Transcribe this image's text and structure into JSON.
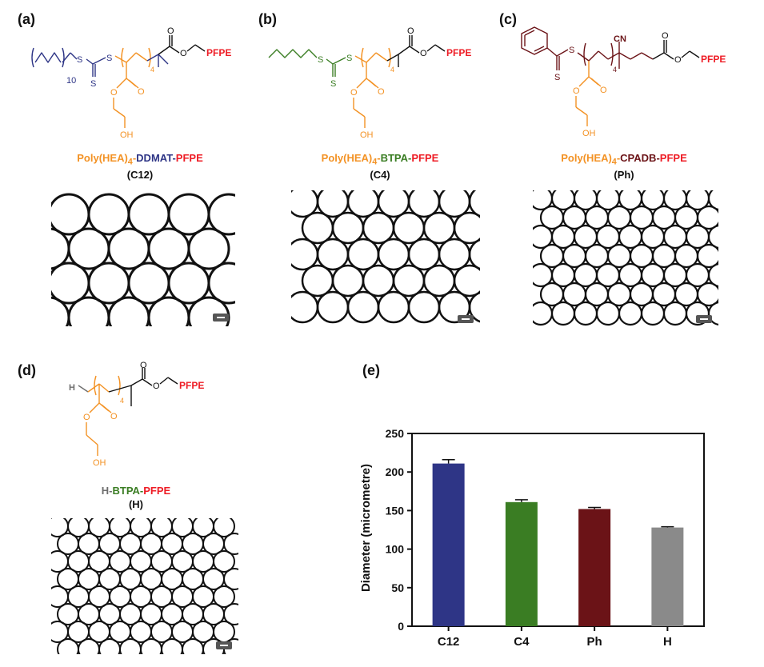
{
  "panels": {
    "a": {
      "letter": "(a)",
      "caption_parts": [
        "Poly(HEA)",
        "4",
        "-",
        "DDMAT",
        "-",
        "PFPE"
      ],
      "code": "(C12)",
      "struct": {
        "rep_outer": "10",
        "rep_inner": "4",
        "S1": "S",
        "S2": "S",
        "S3": "S",
        "O1": "O",
        "O2": "O",
        "O3": "O",
        "O4": "O",
        "OH": "OH",
        "PFPE": "PFPE"
      }
    },
    "b": {
      "letter": "(b)",
      "caption_parts": [
        "Poly(HEA)",
        "4",
        "-",
        "BTPA",
        "-",
        "PFPE"
      ],
      "code": "(C4)",
      "struct": {
        "rep_inner": "4",
        "S1": "S",
        "S2": "S",
        "S3": "S",
        "O1": "O",
        "O2": "O",
        "O3": "O",
        "O4": "O",
        "OH": "OH",
        "PFPE": "PFPE"
      }
    },
    "c": {
      "letter": "(c)",
      "caption_parts": [
        "Poly(HEA)",
        "4",
        "-",
        "CPADB",
        "-",
        "PFPE"
      ],
      "code": "(Ph)",
      "struct": {
        "rep_inner": "4",
        "S1": "S",
        "S2": "S",
        "CN": "CN",
        "O1": "O",
        "O2": "O",
        "O3": "O",
        "O4": "O",
        "OH": "OH",
        "PFPE": "PFPE"
      }
    },
    "d": {
      "letter": "(d)",
      "caption_parts": [
        "H",
        "-",
        "BTPA",
        "-",
        "PFPE"
      ],
      "code": "(H)",
      "struct": {
        "H": "H",
        "rep_inner": "4",
        "O1": "O",
        "O2": "O",
        "O3": "O",
        "O4": "O",
        "OH": "OH",
        "PFPE": "PFPE"
      }
    },
    "e": {
      "letter": "(e)"
    }
  },
  "colors": {
    "orange": "#f39224",
    "navy": "#2e3586",
    "red": "#ee1c25",
    "green": "#3a7d23",
    "maroon": "#6b1317",
    "gray": "#6d6d6d"
  },
  "chart_data": {
    "type": "bar",
    "categories": [
      "C12",
      "C4",
      "Ph",
      "H"
    ],
    "values": [
      211,
      161,
      152,
      128
    ],
    "errors": [
      5,
      3,
      2,
      1
    ],
    "bar_colors": [
      "#2e3586",
      "#3a7d23",
      "#6b1317",
      "#8a8a8a"
    ],
    "ylabel": "Diameter (micrometre)",
    "xlabel": "",
    "ylim": [
      0,
      250
    ],
    "yticks": [
      0,
      50,
      100,
      150,
      200,
      250
    ],
    "grid": false
  }
}
